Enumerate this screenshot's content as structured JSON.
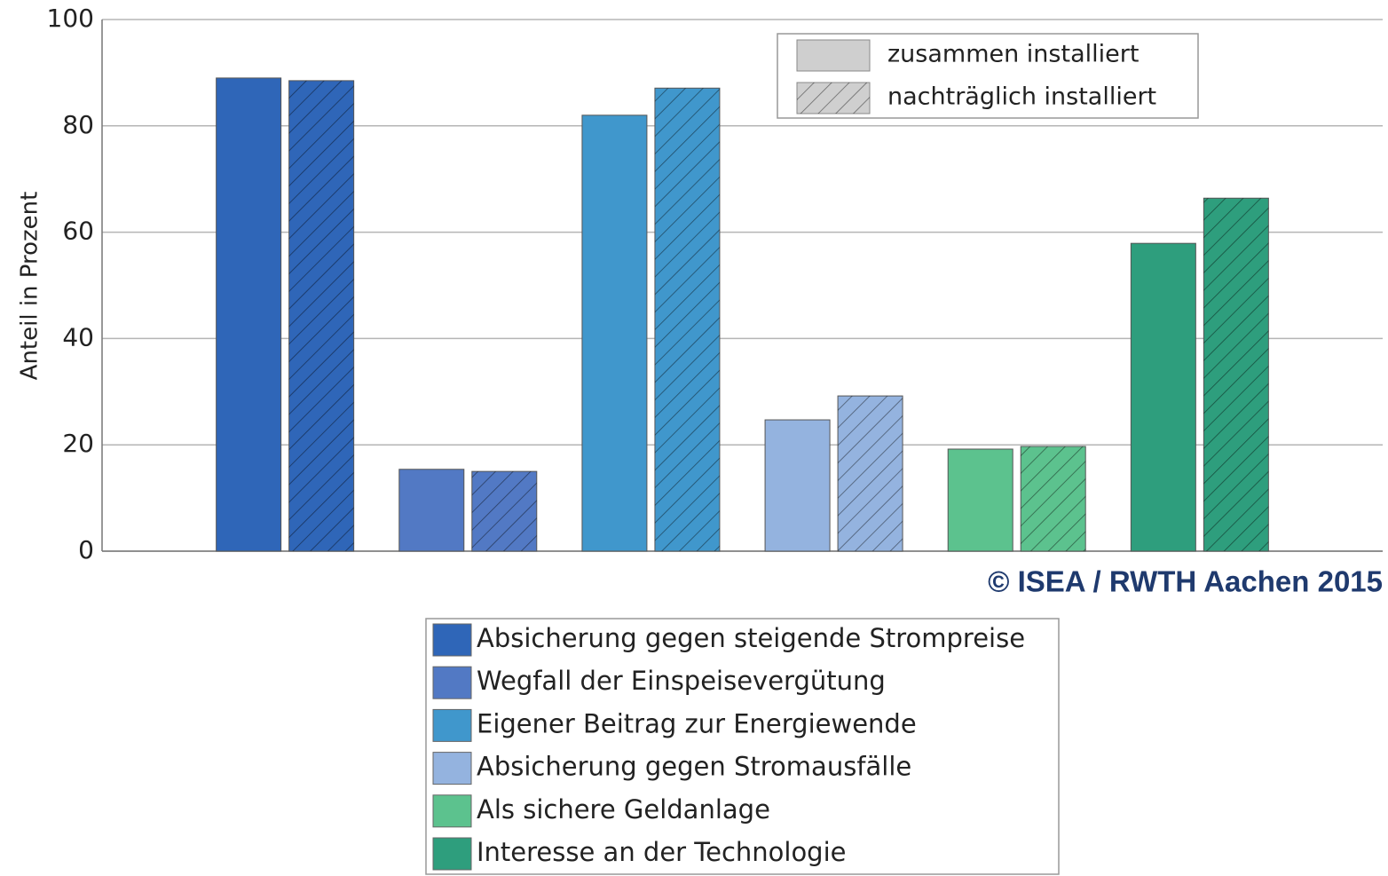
{
  "chart_data": {
    "type": "bar",
    "ylabel": "Anteil in Prozent",
    "annotation": "© ISEA / RWTH Aachen 2015",
    "categories": [
      "Absicherung gegen steigende Strompreise",
      "Wegfall der Einspeisevergütung",
      "Eigener Beitrag zur Energiewende",
      "Absicherung gegen Stromausfälle",
      "Als sichere Geldanlage",
      "Interesse an der Technologie"
    ],
    "colors": [
      "#2f66b8",
      "#5279c4",
      "#4097cc",
      "#94b3df",
      "#5cc28e",
      "#2e9e7d"
    ],
    "series": [
      {
        "name": "zusammen installiert",
        "pattern": "solid",
        "color": "#cfcfcf",
        "values": [
          89,
          15.4,
          82,
          24.7,
          19.2,
          57.9
        ]
      },
      {
        "name": "nachträglich installiert",
        "pattern": "hatched",
        "color": "#cfcfcf",
        "values": [
          88.5,
          15,
          87.1,
          29.2,
          19.7,
          66.4
        ]
      }
    ],
    "ylim": [
      0,
      100
    ],
    "yticks": [
      0,
      20,
      40,
      60,
      80,
      100
    ],
    "grid": true
  }
}
